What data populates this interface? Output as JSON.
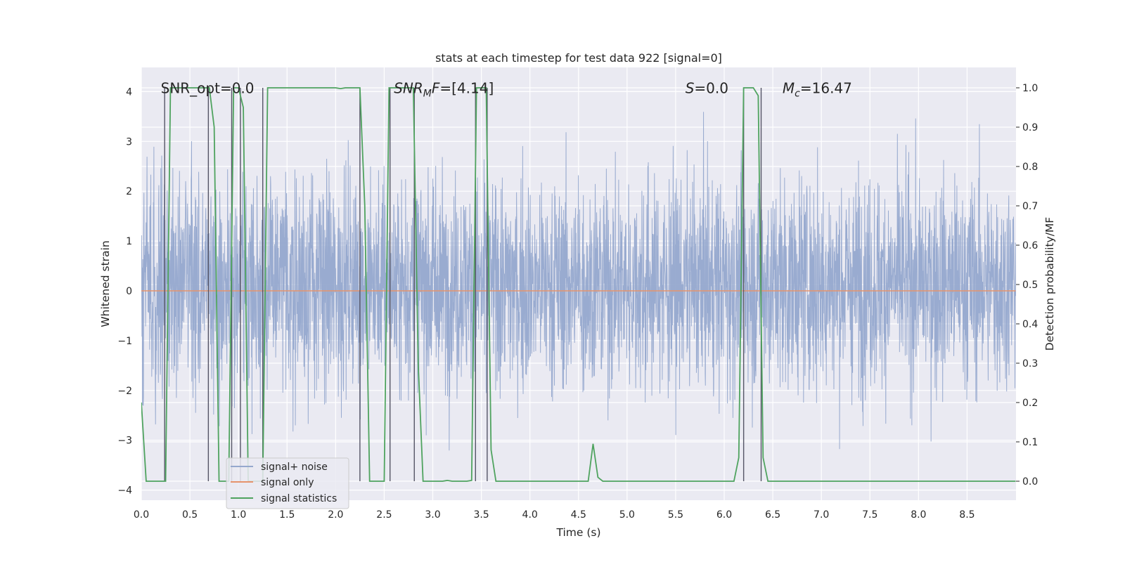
{
  "chart_data": {
    "type": "line",
    "title": "stats at each timestep for test data 922 [signal=0]",
    "xlabel": "Time (s)",
    "ylabel_left": "Whitened strain",
    "ylabel_right": "Detection probability/MF",
    "xlim": [
      0.0,
      9.0
    ],
    "ylim_left": [
      -4.15,
      4.35
    ],
    "ylim_right": [
      -0.045,
      1.045
    ],
    "x_ticks": [
      0.0,
      0.5,
      1.0,
      1.5,
      2.0,
      2.5,
      3.0,
      3.5,
      4.0,
      4.5,
      5.0,
      5.5,
      6.0,
      6.5,
      7.0,
      7.5,
      8.0,
      8.5
    ],
    "x_tick_labels": [
      "0.0",
      "0.5",
      "1.0",
      "1.5",
      "2.0",
      "2.5",
      "3.0",
      "3.5",
      "4.0",
      "4.5",
      "5.0",
      "5.5",
      "6.0",
      "6.5",
      "7.0",
      "7.5",
      "8.0",
      "8.5"
    ],
    "y_left_ticks": [
      4,
      3,
      2,
      1,
      0,
      -1,
      -2,
      -3,
      -4
    ],
    "y_left_tick_labels": [
      "4",
      "3",
      "2",
      "1",
      "0",
      "−1",
      "−2",
      "−3",
      "−4"
    ],
    "y_right_ticks": [
      1.0,
      0.9,
      0.8,
      0.7,
      0.6,
      0.5,
      0.4,
      0.3,
      0.2,
      0.1,
      0.0
    ],
    "y_right_tick_labels": [
      "1.0",
      "0.9",
      "0.8",
      "0.7",
      "0.6",
      "0.5",
      "0.4",
      "0.3",
      "0.2",
      "0.1",
      "0.0"
    ],
    "annotations": [
      {
        "plain": "SNR_opt=0.0",
        "x": 0.2
      },
      {
        "base": "SNR",
        "sub": "M",
        "tail": "F=[4.14]",
        "italic": true,
        "x": 2.6
      },
      {
        "base": "S",
        "tail": "=0.0",
        "italic": true,
        "x": 5.6
      },
      {
        "base": "M",
        "sub": "c",
        "tail": "=16.47",
        "italic": true,
        "x": 6.6
      }
    ],
    "annotation_y": 4.0,
    "legend": {
      "location": "lower-left",
      "entries": [
        {
          "label": "signal+ noise",
          "color": "#95a8cd"
        },
        {
          "label": "signal only",
          "color": "#e6936c"
        },
        {
          "label": "signal statistics",
          "color": "#4fa35f"
        }
      ]
    },
    "series": [
      {
        "name": "signal+ noise",
        "axis": "left",
        "color": "#95a8cd",
        "description": "Whitened noise, about 1 sample per 0.00244 s",
        "sample_rate": 410,
        "envelope_bulk": [
          -1.45,
          1.7
        ],
        "envelope_extremes": [
          -3.7,
          3.6
        ]
      },
      {
        "name": "signal only",
        "axis": "left",
        "color": "#e6936c",
        "x": [
          0.0,
          9.0
        ],
        "values": [
          0.0,
          0.0
        ]
      },
      {
        "name": "signal statistics",
        "axis": "right",
        "color": "#4fa35f",
        "x": [
          0.0,
          0.05,
          0.1,
          0.15,
          0.2,
          0.25,
          0.3,
          0.35,
          0.4,
          0.45,
          0.5,
          0.55,
          0.6,
          0.65,
          0.7,
          0.75,
          0.8,
          0.85,
          0.9,
          0.95,
          1.0,
          1.05,
          1.1,
          1.15,
          1.2,
          1.25,
          1.3,
          1.35,
          1.4,
          1.45,
          1.5,
          1.55,
          1.6,
          1.65,
          1.7,
          1.75,
          1.8,
          1.85,
          1.9,
          1.95,
          2.0,
          2.05,
          2.1,
          2.15,
          2.2,
          2.25,
          2.3,
          2.35,
          2.4,
          2.45,
          2.5,
          2.55,
          2.6,
          2.65,
          2.7,
          2.75,
          2.8,
          2.85,
          2.9,
          2.95,
          3.0,
          3.05,
          3.1,
          3.15,
          3.2,
          3.25,
          3.3,
          3.35,
          3.4,
          3.45,
          3.5,
          3.55,
          3.6,
          3.65,
          3.7,
          4.0,
          4.5,
          4.6,
          4.65,
          4.7,
          4.75,
          4.8,
          5.0,
          5.5,
          6.0,
          6.1,
          6.15,
          6.2,
          6.25,
          6.3,
          6.35,
          6.4,
          6.45,
          6.5,
          6.55,
          7.0,
          7.5,
          8.0,
          8.5,
          9.0
        ],
        "values": [
          0.2,
          0.0,
          0.0,
          0.0,
          0.0,
          0.0,
          1.0,
          1.0,
          1.0,
          1.0,
          1.0,
          1.0,
          1.0,
          1.0,
          1.0,
          0.9,
          0.0,
          0.0,
          0.0,
          1.0,
          1.0,
          0.95,
          0.0,
          0.0,
          0.0,
          0.0,
          1.0,
          1.0,
          1.0,
          1.0,
          1.0,
          1.0,
          1.0,
          1.0,
          1.0,
          1.0,
          1.0,
          1.0,
          1.0,
          1.0,
          1.0,
          0.998,
          1.0,
          1.0,
          1.0,
          1.0,
          0.7,
          0.0,
          0.0,
          0.0,
          0.0,
          1.0,
          1.0,
          1.0,
          1.0,
          1.0,
          1.0,
          0.3,
          0.0,
          0.0,
          0.0,
          0.0,
          0.0,
          0.002,
          0.0,
          0.0,
          0.0,
          0.0,
          0.002,
          1.0,
          1.0,
          1.0,
          0.08,
          0.0,
          0.0,
          0.0,
          0.0,
          0.0,
          0.095,
          0.01,
          0.0,
          0.0,
          0.0,
          0.0,
          0.0,
          0.0,
          0.06,
          1.0,
          1.0,
          1.0,
          0.98,
          0.06,
          0.0,
          0.0,
          0.0,
          0.0,
          0.0,
          0.0,
          0.0,
          0.0
        ]
      }
    ],
    "vertical_markers": [
      0.24,
      0.69,
      0.93,
      1.02,
      1.25,
      2.25,
      2.56,
      2.81,
      3.44,
      3.56,
      6.2,
      6.38
    ]
  }
}
